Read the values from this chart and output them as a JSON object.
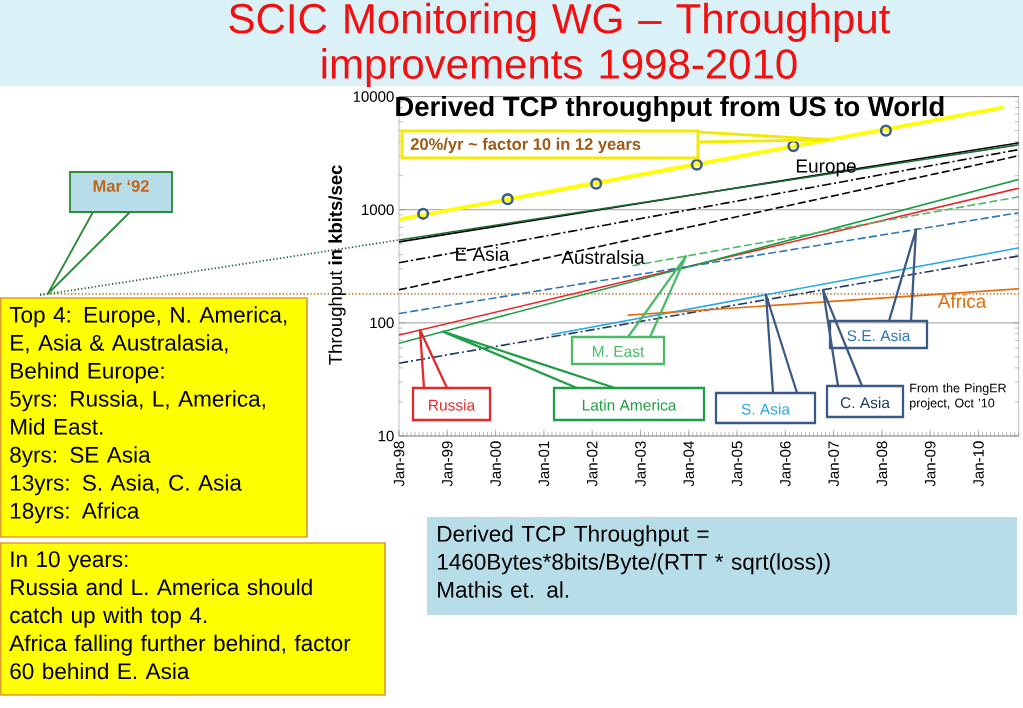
{
  "chart_data": {
    "type": "line",
    "title": "SCIC Monitoring WG – Throughput improvements 1998-2010",
    "subtitle": "Derived TCP throughput from US to World",
    "ylabel": "Throughput **in kbits/sec**",
    "log": "y",
    "grid": "y",
    "xlim": [
      "1998-01",
      "2010-11"
    ],
    "xticks": [
      {
        "value": "1998-01",
        "label": "Jan-98"
      },
      {
        "value": "1999-01",
        "label": "Jan-99"
      },
      {
        "value": "2000-01",
        "label": "Jan-00"
      },
      {
        "value": "2001-01",
        "label": "Jan-01"
      },
      {
        "value": "2002-01",
        "label": "Jan-02"
      },
      {
        "value": "2003-01",
        "label": "Jan-03"
      },
      {
        "value": "2004-01",
        "label": "Jan-04"
      },
      {
        "value": "2005-01",
        "label": "Jan-05"
      },
      {
        "value": "2006-01",
        "label": "Jan-06"
      },
      {
        "value": "2007-01",
        "label": "Jan-07"
      },
      {
        "value": "2008-01",
        "label": "Jan-08"
      },
      {
        "value": "2009-01",
        "label": "Jan-09"
      },
      {
        "value": "2010-01",
        "label": "Jan-10"
      }
    ],
    "ylim": [
      10,
      10000
    ],
    "yticks": [
      10,
      100,
      1000,
      10000
    ],
    "series": [
      {
        "color": "#ffff00",
        "line_style": "solid",
        "x": [
          "1998-01",
          "2010-07"
        ],
        "values": [
          820,
          8000
        ]
      },
      {
        "type": "scatter",
        "color": "#3f5f8a",
        "marker": "circle",
        "x": [
          "1998-07",
          "2000-04",
          "2002-02",
          "2004-03",
          "2006-03",
          "2008-02"
        ],
        "values": [
          920,
          1240,
          1700,
          2500,
          3650,
          5000
        ]
      },
      {
        "name": "Europe",
        "color": "#000000",
        "line_style": "solid",
        "x": [
          "1998-01",
          "2010-11"
        ],
        "values": [
          520,
          3900
        ]
      },
      {
        "color": "#1d6b33",
        "line_style": "solid",
        "x": [
          "1998-01",
          "2010-11"
        ],
        "values": [
          540,
          3750
        ]
      },
      {
        "name": "E Asia",
        "color": "#000000",
        "line_style": "dashdot",
        "x": [
          "1998-01",
          "2010-11"
        ],
        "values": [
          340,
          3400
        ]
      },
      {
        "name": "Australsia",
        "color": "#000000",
        "line_style": "dashed",
        "x": [
          "1998-01",
          "2010-11"
        ],
        "values": [
          196,
          3000
        ]
      },
      {
        "name": "Russia",
        "color": "#e8262a",
        "line_style": "solid",
        "x": [
          "1998-01",
          "2010-11"
        ],
        "values": [
          78,
          1550
        ]
      },
      {
        "name": "Latin America",
        "color": "#1f9f45",
        "line_style": "solid",
        "x": [
          "1998-01",
          "2010-11"
        ],
        "values": [
          66,
          1850
        ]
      },
      {
        "name": "M. East",
        "color": "#4cbb67",
        "line_style": "dashed",
        "x": [
          "2002-11",
          "2010-11"
        ],
        "values": [
          320,
          1300
        ]
      },
      {
        "name": "S.E. Asia",
        "color": "#2e75b6",
        "line_style": "dashed",
        "x": [
          "1998-01",
          "2010-11"
        ],
        "values": [
          121,
          940
        ]
      },
      {
        "name": "S. Asia",
        "color": "#27a9e1",
        "line_style": "solid",
        "x": [
          "2001-03",
          "2010-11"
        ],
        "values": [
          79,
          460
        ]
      },
      {
        "name": "C. Asia",
        "color": "#1f3a64",
        "line_style": "dashdot",
        "x": [
          "1998-01",
          "2010-11"
        ],
        "values": [
          44,
          390
        ]
      },
      {
        "name": "Africa",
        "color": "#e46c0a",
        "line_style": "solid",
        "x": [
          "2002-10",
          "2010-11"
        ],
        "values": [
          117,
          200
        ]
      }
    ],
    "ref_lines": [
      {
        "axis": "y",
        "value": 180,
        "color": "#d07a2c",
        "line_style": "dotted"
      }
    ],
    "annotations": [
      "20%/yr ~ factor 10 in 12 years",
      "Mar ‘92",
      "From the PingER\nproject, Oct ’10",
      "Top 4: Europe, N. America,\nE, Asia & Australasia,\nBehind Europe:\n5yrs: Russia, L, America,\nMid East.\n8yrs: SE Asia\n13yrs: S. Asia, C. Asia\n18yrs: Africa",
      "In 10 years:\nRussia and L. America should\ncatch up with top 4.\nAfrica falling further behind, factor\n60 behind E. Asia",
      "Derived TCP Throughput =\n1460Bytes*8bits/Byte/(RTT * sqrt(loss))\nMathis et. al."
    ]
  }
}
